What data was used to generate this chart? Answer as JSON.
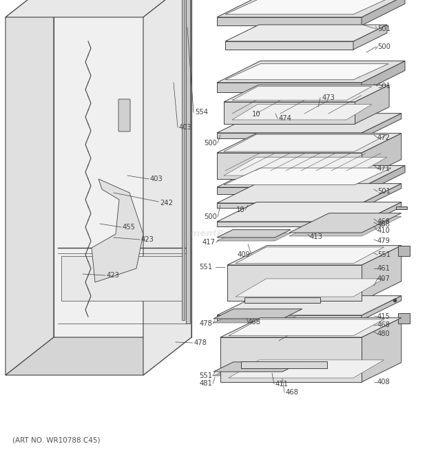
{
  "art_no": "(ART NO. WR10788 C45)",
  "bg_color": "#ffffff",
  "lc": "#404040",
  "tc": "#404040",
  "watermark": "eReplacementParts.com"
}
